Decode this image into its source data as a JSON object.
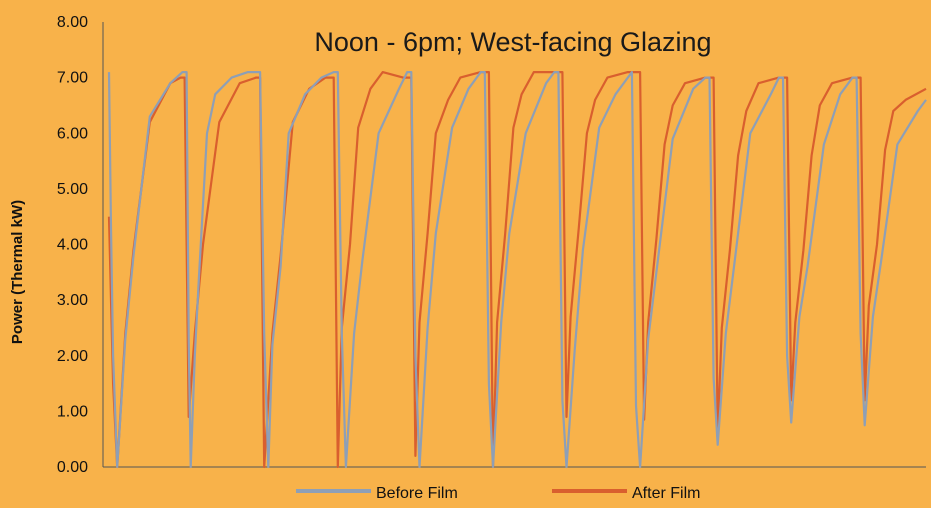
{
  "chart_data": {
    "type": "line",
    "title": "Noon - 6pm; West-facing Glazing",
    "xlabel": "",
    "ylabel": "Power (Thermal kW)",
    "ylim": [
      0,
      8
    ],
    "yticks": [
      "0.00",
      "1.00",
      "2.00",
      "3.00",
      "4.00",
      "5.00",
      "6.00",
      "7.00",
      "8.00"
    ],
    "x_ticks_labeled": false,
    "grid": false,
    "legend_position": "bottom",
    "colors": {
      "background": "#F8B24A",
      "axis": "#555555",
      "before": "#8E9FB6",
      "after": "#D95F2E"
    },
    "series": [
      {
        "name": "Before Film",
        "color": "#8E9FB6",
        "x": [
          0,
          0.5,
          1,
          2,
          4,
          6,
          10,
          15,
          18,
          19,
          19.5,
          20,
          21,
          22,
          24,
          26,
          30,
          34,
          37,
          38,
          39,
          40,
          42,
          44,
          48,
          52,
          55,
          56,
          57,
          58,
          60,
          62,
          66,
          71,
          73,
          74,
          75,
          76,
          78,
          80,
          84,
          88,
          91,
          92,
          93,
          94,
          96,
          98,
          102,
          107,
          109,
          110,
          111,
          112,
          114,
          116,
          120,
          124,
          127,
          128,
          129,
          130,
          132,
          134,
          138,
          143,
          146,
          147,
          148,
          149,
          151,
          153,
          157,
          162,
          164,
          165,
          166,
          167,
          169,
          171,
          175,
          179,
          182,
          183,
          184,
          185,
          187,
          189,
          193,
          198,
          200
        ],
        "values": [
          7.1,
          4.3,
          2.0,
          0.0,
          2.3,
          3.8,
          6.3,
          6.9,
          7.1,
          7.1,
          2.3,
          0.0,
          2.0,
          3.4,
          6.0,
          6.7,
          7.0,
          7.1,
          7.1,
          2.4,
          0.0,
          2.2,
          3.6,
          6.0,
          6.7,
          7.0,
          7.1,
          7.1,
          2.4,
          0.0,
          2.4,
          3.7,
          6.0,
          6.8,
          7.1,
          7.1,
          2.0,
          0.0,
          2.5,
          4.2,
          6.1,
          6.8,
          7.1,
          7.1,
          1.5,
          0.0,
          2.6,
          4.2,
          6.0,
          6.9,
          7.1,
          7.1,
          1.2,
          0.0,
          2.1,
          3.9,
          6.1,
          6.7,
          7.0,
          7.1,
          1.1,
          0.0,
          2.3,
          3.5,
          5.9,
          6.8,
          7.0,
          7.0,
          1.6,
          0.4,
          2.4,
          3.6,
          6.0,
          6.7,
          7.0,
          7.0,
          2.0,
          0.8,
          2.7,
          3.6,
          5.8,
          6.7,
          7.0,
          7.0,
          2.4,
          0.75,
          2.7,
          3.7,
          5.8,
          6.4,
          6.6
        ]
      },
      {
        "name": "After Film",
        "color": "#D95F2E",
        "x": [
          0,
          0.5,
          1,
          2,
          4,
          6,
          10,
          15,
          17.5,
          18.5,
          19.5,
          21,
          23,
          27,
          32,
          36,
          37,
          38,
          40,
          42,
          45,
          49,
          53,
          55,
          56,
          57,
          59,
          61,
          64,
          67,
          72,
          74,
          75,
          76,
          78,
          80,
          83,
          86,
          91,
          93,
          94,
          95,
          97,
          99,
          101,
          104,
          109,
          111,
          112,
          113,
          115,
          117,
          119,
          122,
          127,
          130,
          131,
          132,
          134,
          136,
          138,
          141,
          146,
          148,
          149,
          150,
          152,
          154,
          156,
          159,
          164,
          166,
          167,
          168,
          170,
          172,
          174,
          177,
          182,
          184,
          185,
          186,
          188,
          190,
          192,
          195,
          200
        ],
        "values": [
          4.5,
          3.0,
          1.5,
          0.0,
          2.4,
          3.9,
          6.2,
          6.9,
          7.0,
          7.0,
          0.9,
          2.4,
          4.0,
          6.2,
          6.9,
          7.0,
          7.0,
          0.0,
          2.4,
          3.8,
          6.2,
          6.8,
          7.0,
          7.0,
          0.0,
          2.5,
          4.0,
          6.1,
          6.8,
          7.1,
          7.0,
          7.0,
          0.2,
          2.6,
          4.2,
          6.0,
          6.6,
          7.0,
          7.1,
          7.1,
          0.0,
          2.6,
          4.2,
          6.1,
          6.7,
          7.1,
          7.1,
          7.1,
          0.9,
          2.7,
          4.3,
          6.0,
          6.6,
          7.0,
          7.1,
          7.1,
          0.85,
          2.6,
          4.1,
          5.8,
          6.5,
          6.9,
          7.0,
          7.0,
          0.6,
          2.5,
          3.9,
          5.6,
          6.4,
          6.9,
          7.0,
          7.0,
          1.2,
          2.6,
          3.9,
          5.6,
          6.5,
          6.9,
          7.0,
          7.0,
          1.2,
          2.9,
          4.0,
          5.7,
          6.4,
          6.6,
          6.8
        ]
      }
    ]
  }
}
